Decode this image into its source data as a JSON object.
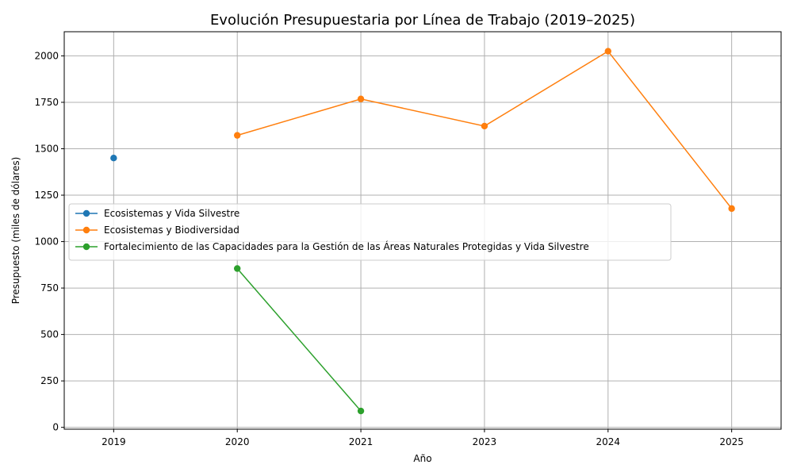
{
  "chart_data": {
    "type": "line",
    "title": "Evolución Presupuestaria por Línea de Trabajo (2019–2025)",
    "xlabel": "Año",
    "ylabel": "Presupuesto (miles de dólares)",
    "categories": [
      "2019",
      "2020",
      "2021",
      "2023",
      "2024",
      "2025"
    ],
    "ylim": [
      -10,
      2130
    ],
    "yticks": [
      0,
      250,
      500,
      750,
      1000,
      1250,
      1500,
      1750,
      2000
    ],
    "grid": true,
    "legend_position": "center-left",
    "series": [
      {
        "name": "Ecosistemas y Vida Silvestre",
        "color": "#1f77b4",
        "values": [
          1450,
          null,
          null,
          null,
          null,
          null
        ]
      },
      {
        "name": "Ecosistemas y Biodiversidad",
        "color": "#ff7f0e",
        "values": [
          null,
          1572,
          1768,
          1622,
          2025,
          1178
        ]
      },
      {
        "name": "Fortalecimiento de las Capacidades para la Gestión de las Áreas Naturales Protegidas y Vida Silvestre",
        "color": "#2ca02c",
        "values": [
          null,
          855,
          88,
          null,
          null,
          null
        ]
      }
    ]
  }
}
